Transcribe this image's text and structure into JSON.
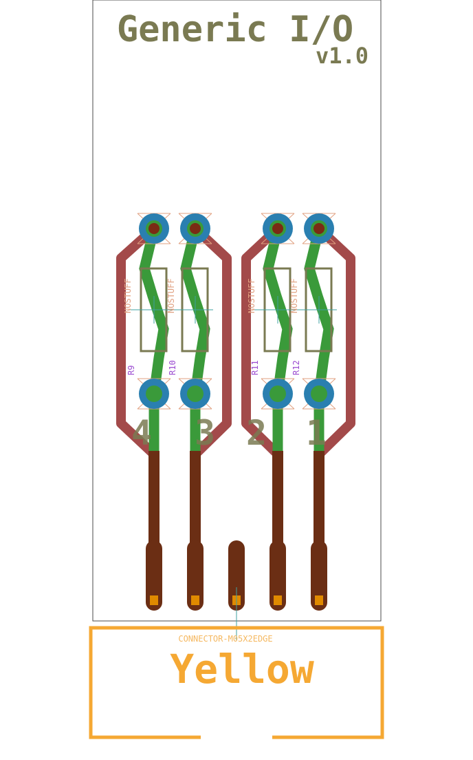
{
  "board": {
    "title": "Generic I/O",
    "version": "v1.0"
  },
  "channels": [
    {
      "number": "4",
      "resistor": "R9",
      "value": "NOSTUFF"
    },
    {
      "number": "3",
      "resistor": "R10",
      "value": "NOSTUFF"
    },
    {
      "number": "2",
      "resistor": "R11",
      "value": "NOSTUFF"
    },
    {
      "number": "1",
      "resistor": "R12",
      "value": "NOSTUFF"
    }
  ],
  "connector": {
    "name": "CONNECTOR-M05X2EDGE",
    "label": "Yellow"
  },
  "colors": {
    "silkscreen": "#7a7a52",
    "outline": "#4a4a4a",
    "top_copper": "#a34a4a",
    "bottom_copper": "#3a9a3a",
    "edge_pad": "#6b2e14",
    "pad_square": "#e08a00",
    "via": "#2a7fb0",
    "via_hole": "#7a2a14",
    "ref_label": "#9a4ad0",
    "value_label": "#e0a080",
    "connector_outline": "#f5a833",
    "airwire": "#3fa0a0"
  }
}
